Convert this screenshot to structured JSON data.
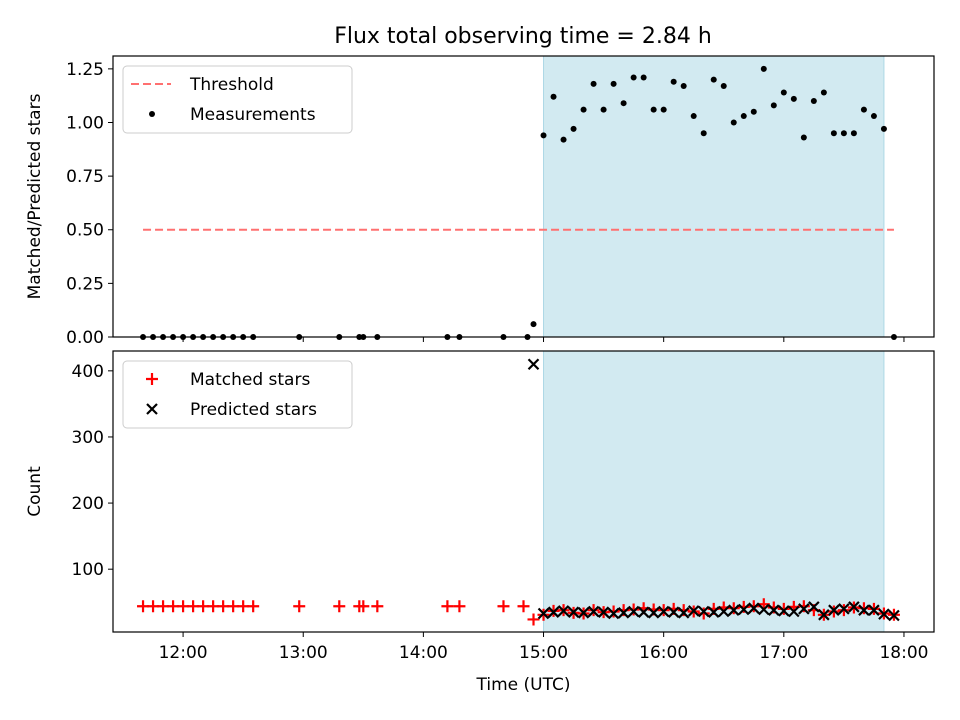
{
  "title": "Flux total observing time = 2.84 h",
  "colors": {
    "observing_window": "#add8e6",
    "threshold": "#ff7070",
    "measurement": "#000000",
    "matched": "#ff0000",
    "predicted": "#000000"
  },
  "chart_data": [
    {
      "type": "scatter",
      "panel": "top",
      "ylabel": "Matched/Predicted stars",
      "xlim": [
        "11:25",
        "18:15"
      ],
      "ylim": [
        0,
        1.31
      ],
      "yticks": [
        "0.00",
        "0.25",
        "0.50",
        "0.75",
        "1.00",
        "1.25"
      ],
      "xtick_labels_shown": false,
      "observing_window": [
        "15:00",
        "17:50"
      ],
      "legend": {
        "position": "upper-left",
        "entries": [
          {
            "label": "Threshold",
            "style": "dashed-line"
          },
          {
            "label": "Measurements",
            "style": "dot"
          }
        ]
      },
      "threshold": {
        "label": "Threshold",
        "value": 0.5,
        "x_range": [
          "11:40",
          "17:55"
        ]
      },
      "series": [
        {
          "name": "Measurements",
          "x": [
            "11:40",
            "11:45",
            "11:50",
            "11:55",
            "12:00",
            "12:05",
            "12:10",
            "12:15",
            "12:20",
            "12:25",
            "12:30",
            "12:35",
            "12:58",
            "13:18",
            "13:28",
            "13:30",
            "13:37",
            "14:12",
            "14:18",
            "14:40",
            "14:52",
            "14:55",
            "15:00",
            "15:05",
            "15:10",
            "15:15",
            "15:20",
            "15:25",
            "15:30",
            "15:35",
            "15:40",
            "15:45",
            "15:50",
            "15:55",
            "16:00",
            "16:05",
            "16:10",
            "16:15",
            "16:20",
            "16:25",
            "16:30",
            "16:35",
            "16:40",
            "16:45",
            "16:50",
            "16:55",
            "17:00",
            "17:05",
            "17:10",
            "17:15",
            "17:20",
            "17:25",
            "17:30",
            "17:35",
            "17:40",
            "17:45",
            "17:50",
            "17:55"
          ],
          "y": [
            0,
            0,
            0,
            0,
            0,
            0,
            0,
            0,
            0,
            0,
            0,
            0,
            0,
            0,
            0,
            0,
            0,
            0,
            0,
            0,
            0,
            0.06,
            0.94,
            1.12,
            0.92,
            0.97,
            1.06,
            1.18,
            1.06,
            1.18,
            1.09,
            1.21,
            1.21,
            1.06,
            1.06,
            1.19,
            1.17,
            1.03,
            0.95,
            1.2,
            1.17,
            1.0,
            1.03,
            1.05,
            1.25,
            1.08,
            1.14,
            1.11,
            0.93,
            1.1,
            1.14,
            0.95,
            0.95,
            0.95,
            1.06,
            1.03,
            0.97,
            0
          ]
        }
      ]
    },
    {
      "type": "scatter",
      "panel": "bottom",
      "xlabel": "Time (UTC)",
      "ylabel": "Count",
      "xlim": [
        "11:25",
        "18:15"
      ],
      "ylim": [
        5,
        430
      ],
      "xticks": [
        "12:00",
        "13:00",
        "14:00",
        "15:00",
        "16:00",
        "17:00",
        "18:00"
      ],
      "yticks": [
        "100",
        "200",
        "300",
        "400"
      ],
      "observing_window": [
        "15:00",
        "17:50"
      ],
      "legend": {
        "position": "upper-left",
        "entries": [
          {
            "label": "Matched stars",
            "style": "plus"
          },
          {
            "label": "Predicted stars",
            "style": "cross"
          }
        ]
      },
      "series": [
        {
          "name": "Matched stars",
          "marker": "+",
          "x": [
            "11:40",
            "11:45",
            "11:50",
            "11:55",
            "12:00",
            "12:05",
            "12:10",
            "12:15",
            "12:20",
            "12:25",
            "12:30",
            "12:35",
            "12:58",
            "13:18",
            "13:28",
            "13:30",
            "13:37",
            "14:12",
            "14:18",
            "14:40",
            "14:50",
            "14:55",
            "15:00",
            "15:05",
            "15:10",
            "15:15",
            "15:20",
            "15:25",
            "15:30",
            "15:35",
            "15:40",
            "15:45",
            "15:50",
            "15:55",
            "16:00",
            "16:05",
            "16:10",
            "16:15",
            "16:20",
            "16:25",
            "16:30",
            "16:35",
            "16:40",
            "16:45",
            "16:50",
            "16:55",
            "17:00",
            "17:05",
            "17:10",
            "17:15",
            "17:20",
            "17:25",
            "17:30",
            "17:35",
            "17:40",
            "17:45",
            "17:50",
            "17:55"
          ],
          "y": [
            44,
            44,
            44,
            44,
            44,
            44,
            44,
            44,
            44,
            44,
            44,
            44,
            44,
            44,
            44,
            44,
            44,
            44,
            44,
            44,
            44,
            24,
            31,
            37,
            38,
            34,
            33,
            38,
            35,
            36,
            38,
            39,
            41,
            39,
            38,
            40,
            38,
            36,
            33,
            40,
            42,
            41,
            43,
            44,
            47,
            42,
            40,
            43,
            44,
            38,
            31,
            36,
            38,
            42,
            41,
            40,
            33,
            31
          ],
          "visible_range": [
            "11:40",
            "17:55"
          ]
        },
        {
          "name": "Predicted stars",
          "marker": "x",
          "x": [
            "14:55",
            "15:00",
            "15:05",
            "15:10",
            "15:15",
            "15:20",
            "15:25",
            "15:30",
            "15:35",
            "15:40",
            "15:45",
            "15:50",
            "15:55",
            "16:00",
            "16:05",
            "16:10",
            "16:15",
            "16:20",
            "16:25",
            "16:30",
            "16:35",
            "16:40",
            "16:45",
            "16:50",
            "16:55",
            "17:00",
            "17:05",
            "17:10",
            "17:15",
            "17:20",
            "17:25",
            "17:30",
            "17:35",
            "17:40",
            "17:45",
            "17:50",
            "17:55"
          ],
          "y": [
            410,
            33,
            35,
            37,
            35,
            34,
            36,
            35,
            33,
            34,
            36,
            35,
            34,
            36,
            35,
            34,
            37,
            36,
            35,
            36,
            38,
            39,
            41,
            39,
            38,
            37,
            36,
            40,
            43,
            31,
            38,
            40,
            43,
            38,
            38,
            32,
            30
          ]
        }
      ]
    }
  ]
}
